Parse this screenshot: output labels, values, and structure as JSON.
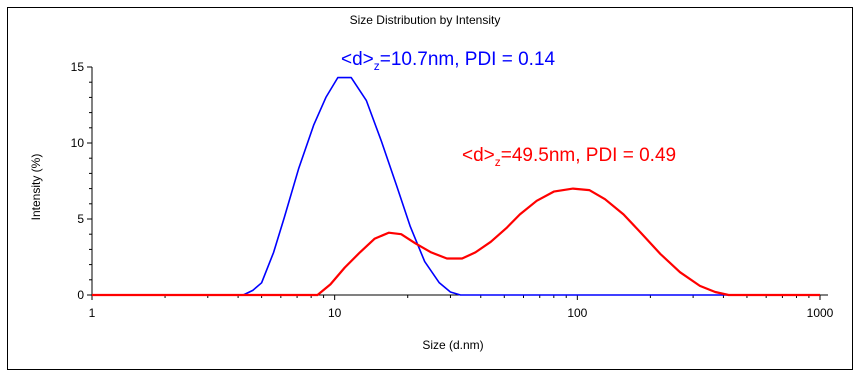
{
  "chart_data": {
    "type": "line",
    "title": "Size Distribution by Intensity",
    "xlabel": "Size (d.nm)",
    "ylabel": "Intensity (%)",
    "x_scale": "log",
    "xlim": [
      1,
      1000
    ],
    "ylim": [
      0,
      15
    ],
    "x_ticks": [
      1,
      10,
      100,
      1000
    ],
    "x_tick_labels": [
      "1",
      "10",
      "100",
      "1000"
    ],
    "y_ticks": [
      0,
      5,
      10,
      15
    ],
    "y_tick_labels": [
      "0",
      "5",
      "10",
      "15"
    ],
    "grid": false,
    "series": [
      {
        "color": "#0000ff",
        "points": [
          [
            1,
            0
          ],
          [
            4.2,
            0
          ],
          [
            4.6,
            0.3
          ],
          [
            5,
            0.8
          ],
          [
            5.6,
            2.8
          ],
          [
            6.2,
            5.1
          ],
          [
            7.1,
            8.3
          ],
          [
            8.2,
            11.2
          ],
          [
            9.2,
            13.0
          ],
          [
            10.3,
            14.3
          ],
          [
            11.7,
            14.3
          ],
          [
            13.5,
            12.8
          ],
          [
            15.6,
            10.1
          ],
          [
            18,
            7.2
          ],
          [
            20.5,
            4.5
          ],
          [
            23.5,
            2.2
          ],
          [
            27,
            0.8
          ],
          [
            30,
            0.2
          ],
          [
            33,
            0
          ],
          [
            1000,
            0
          ]
        ]
      },
      {
        "color": "#ff0000",
        "points": [
          [
            1,
            0
          ],
          [
            8.5,
            0
          ],
          [
            9.6,
            0.7
          ],
          [
            11,
            1.8
          ],
          [
            12.7,
            2.8
          ],
          [
            14.6,
            3.7
          ],
          [
            16.7,
            4.1
          ],
          [
            18.8,
            4.0
          ],
          [
            21.5,
            3.4
          ],
          [
            25,
            2.8
          ],
          [
            29,
            2.4
          ],
          [
            33.5,
            2.4
          ],
          [
            38,
            2.8
          ],
          [
            44,
            3.5
          ],
          [
            51,
            4.4
          ],
          [
            58,
            5.3
          ],
          [
            68,
            6.2
          ],
          [
            80,
            6.8
          ],
          [
            96,
            7.0
          ],
          [
            112,
            6.9
          ],
          [
            130,
            6.3
          ],
          [
            155,
            5.3
          ],
          [
            185,
            4.0
          ],
          [
            220,
            2.7
          ],
          [
            265,
            1.5
          ],
          [
            320,
            0.6
          ],
          [
            370,
            0.2
          ],
          [
            420,
            0
          ],
          [
            1000,
            0
          ]
        ]
      }
    ],
    "annotations": [
      {
        "main": "<d>",
        "sub": "z",
        "rest": "=10.7nm, PDI = 0.14",
        "color": "#0000ff"
      },
      {
        "main": "<d>",
        "sub": "z",
        "rest": "=49.5nm, PDI = 0.49",
        "color": "#ff0000"
      }
    ]
  }
}
